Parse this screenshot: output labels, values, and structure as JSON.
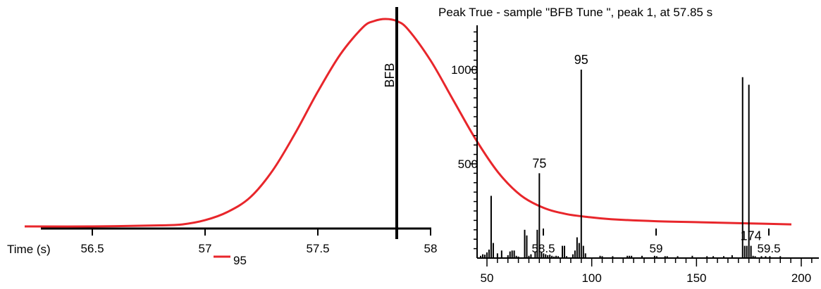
{
  "chart_data": [
    {
      "type": "line",
      "xlabel": "Time (s)",
      "ylabel": "",
      "xlim": [
        56.2,
        59.6
      ],
      "ylim": [
        0,
        1
      ],
      "x_ticks": [
        "56.5",
        "57",
        "57.5",
        "58",
        "58.5",
        "59",
        "59.5"
      ],
      "peak_marker": {
        "label": "BFB",
        "x": 57.85
      },
      "legend": {
        "position": "bottom",
        "entries": [
          {
            "name": "95",
            "color": "#e8262b"
          }
        ]
      },
      "series": [
        {
          "name": "95",
          "color": "#e8262b",
          "x": [
            56.2,
            56.5,
            56.8,
            56.9,
            57.0,
            57.1,
            57.2,
            57.3,
            57.4,
            57.5,
            57.6,
            57.7,
            57.75,
            57.8,
            57.85,
            57.9,
            58.0,
            58.1,
            58.2,
            58.3,
            58.4,
            58.5,
            58.6,
            58.7,
            58.8,
            59.0,
            59.2,
            59.4,
            59.6
          ],
          "values": [
            0.0,
            0.0,
            0.005,
            0.01,
            0.03,
            0.07,
            0.14,
            0.27,
            0.45,
            0.65,
            0.83,
            0.96,
            0.99,
            1.0,
            0.99,
            0.95,
            0.8,
            0.61,
            0.42,
            0.26,
            0.15,
            0.09,
            0.06,
            0.045,
            0.035,
            0.025,
            0.02,
            0.015,
            0.01
          ]
        }
      ]
    },
    {
      "type": "bar",
      "title": "Peak True - sample \"BFB Tune \", peak 1, at 57.85 s",
      "xlabel": "",
      "ylabel": "",
      "xlim": [
        46,
        208
      ],
      "ylim": [
        0,
        1250
      ],
      "x_ticks": [
        50,
        100,
        150,
        200
      ],
      "y_ticks": [
        500,
        1000
      ],
      "annotations": [
        {
          "text": "75",
          "x": 75
        },
        {
          "text": "95",
          "x": 95
        },
        {
          "text": "174",
          "x": 174
        }
      ],
      "series": [
        {
          "name": "",
          "color": "#000000",
          "x": [
            47,
            48,
            49,
            50,
            51,
            52,
            53,
            55,
            57,
            60,
            61,
            62,
            63,
            64,
            65,
            68,
            69,
            70,
            71,
            73,
            74,
            75,
            76,
            77,
            78,
            79,
            80,
            81,
            82,
            83,
            84,
            86,
            87,
            88,
            91,
            92,
            93,
            94,
            95,
            96,
            97,
            104,
            105,
            110,
            117,
            118,
            119,
            124,
            130,
            131,
            135,
            136,
            141,
            148,
            155,
            158,
            163,
            167,
            172,
            173,
            174,
            175,
            176,
            177,
            178,
            181,
            183,
            185,
            190
          ],
          "values": [
            12,
            20,
            18,
            30,
            45,
            330,
            80,
            25,
            40,
            15,
            35,
            40,
            40,
            12,
            8,
            150,
            120,
            12,
            20,
            35,
            150,
            450,
            30,
            25,
            20,
            15,
            18,
            12,
            8,
            12,
            10,
            65,
            65,
            10,
            20,
            40,
            110,
            80,
            1000,
            65,
            25,
            12,
            10,
            10,
            12,
            12,
            12,
            12,
            12,
            10,
            10,
            10,
            10,
            12,
            10,
            10,
            10,
            15,
            960,
            65,
            65,
            920,
            65,
            12,
            10,
            10,
            10,
            10,
            10
          ]
        }
      ]
    }
  ]
}
